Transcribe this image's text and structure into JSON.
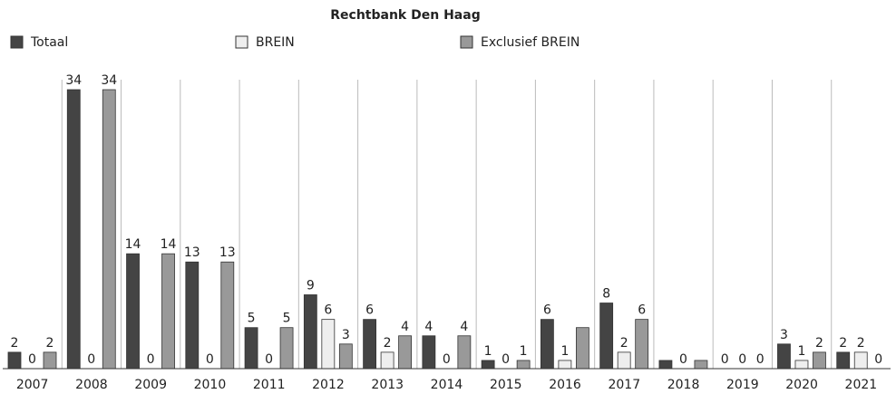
{
  "chart_data": {
    "type": "bar",
    "title": "Rechtbank Den Haag",
    "categories": [
      "2007",
      "2008",
      "2009",
      "2010",
      "2011",
      "2012",
      "2013",
      "2014",
      "2015",
      "2016",
      "2017",
      "2018",
      "2019",
      "2020",
      "2021"
    ],
    "series": [
      {
        "name": "Totaal",
        "color": "#444444",
        "values": [
          2,
          34,
          14,
          13,
          5,
          9,
          6,
          4,
          1,
          6,
          8,
          1,
          0,
          3,
          2
        ],
        "value_labels": [
          "2",
          "34",
          "14",
          "13",
          "5",
          "9",
          "6",
          "4",
          "1",
          "6",
          "8",
          null,
          "0",
          "3",
          "2"
        ]
      },
      {
        "name": "BREIN",
        "color": "#eeeeee",
        "values": [
          0,
          0,
          0,
          0,
          0,
          6,
          2,
          0,
          0,
          1,
          2,
          0,
          0,
          1,
          2
        ],
        "value_labels": [
          "0",
          "0",
          "0",
          "0",
          "0",
          "6",
          "2",
          "0",
          "0",
          "1",
          "2",
          "0",
          "0",
          "1",
          "2"
        ]
      },
      {
        "name": "Exclusief BREIN",
        "color": "#999999",
        "values": [
          2,
          34,
          14,
          13,
          5,
          3,
          4,
          4,
          1,
          5,
          6,
          1,
          0,
          2,
          0
        ],
        "value_labels": [
          "2",
          "34",
          "14",
          "13",
          "5",
          "3",
          "4",
          "4",
          "1",
          null,
          "6",
          null,
          "0",
          "2",
          "0"
        ]
      }
    ],
    "ylim": [
      0,
      34
    ],
    "legend": "top-left"
  }
}
